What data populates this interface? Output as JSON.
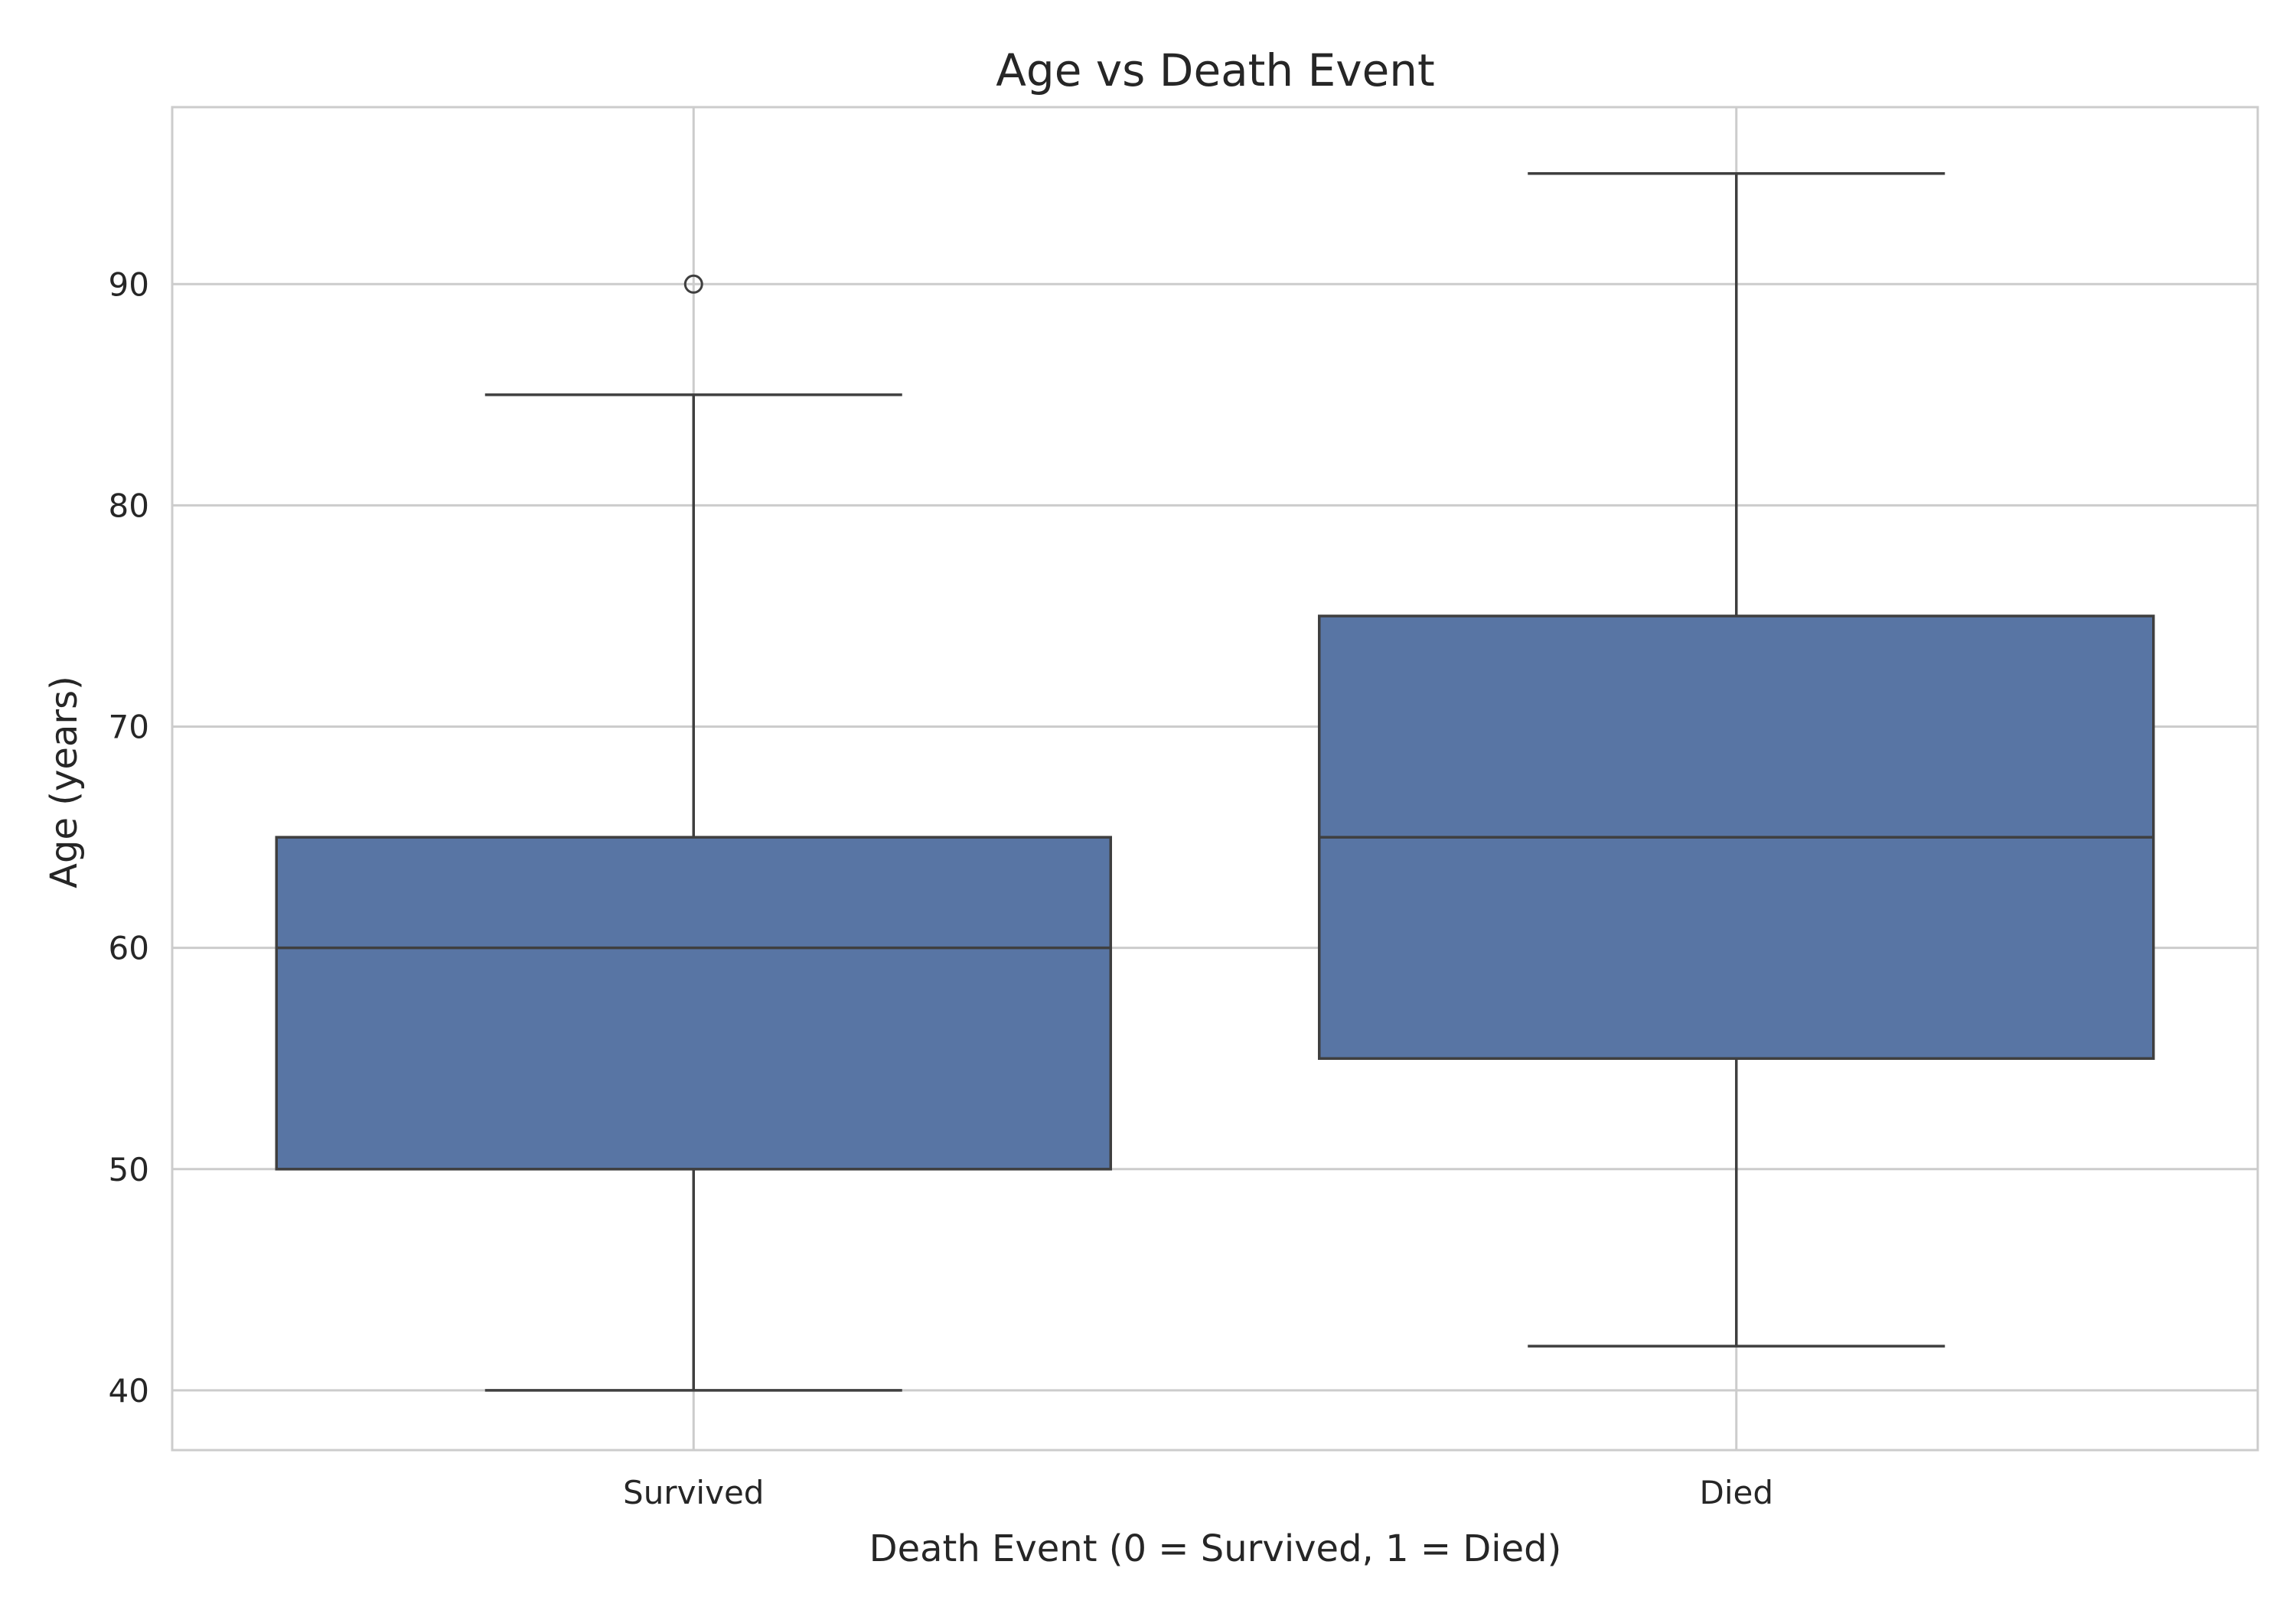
{
  "chart_data": {
    "type": "box",
    "title": "Age vs Death Event",
    "xlabel": "Death Event (0 = Survived, 1 = Died)",
    "ylabel": "Age (years)",
    "categories": [
      "Survived",
      "Died"
    ],
    "yticks": [
      40,
      50,
      60,
      70,
      80,
      90
    ],
    "ylim": [
      37.3,
      98
    ],
    "grid": true,
    "legend": "none",
    "box_color": "#5875a4",
    "edge_color": "#3f3f3f",
    "grid_color": "#cccccc",
    "boxes": [
      {
        "category": "Survived",
        "whisker_low": 40,
        "q1": 50,
        "median": 60,
        "q3": 65,
        "whisker_high": 85,
        "outliers": [
          90
        ]
      },
      {
        "category": "Died",
        "whisker_low": 42,
        "q1": 55,
        "median": 65,
        "q3": 75,
        "whisker_high": 95,
        "outliers": []
      }
    ]
  }
}
